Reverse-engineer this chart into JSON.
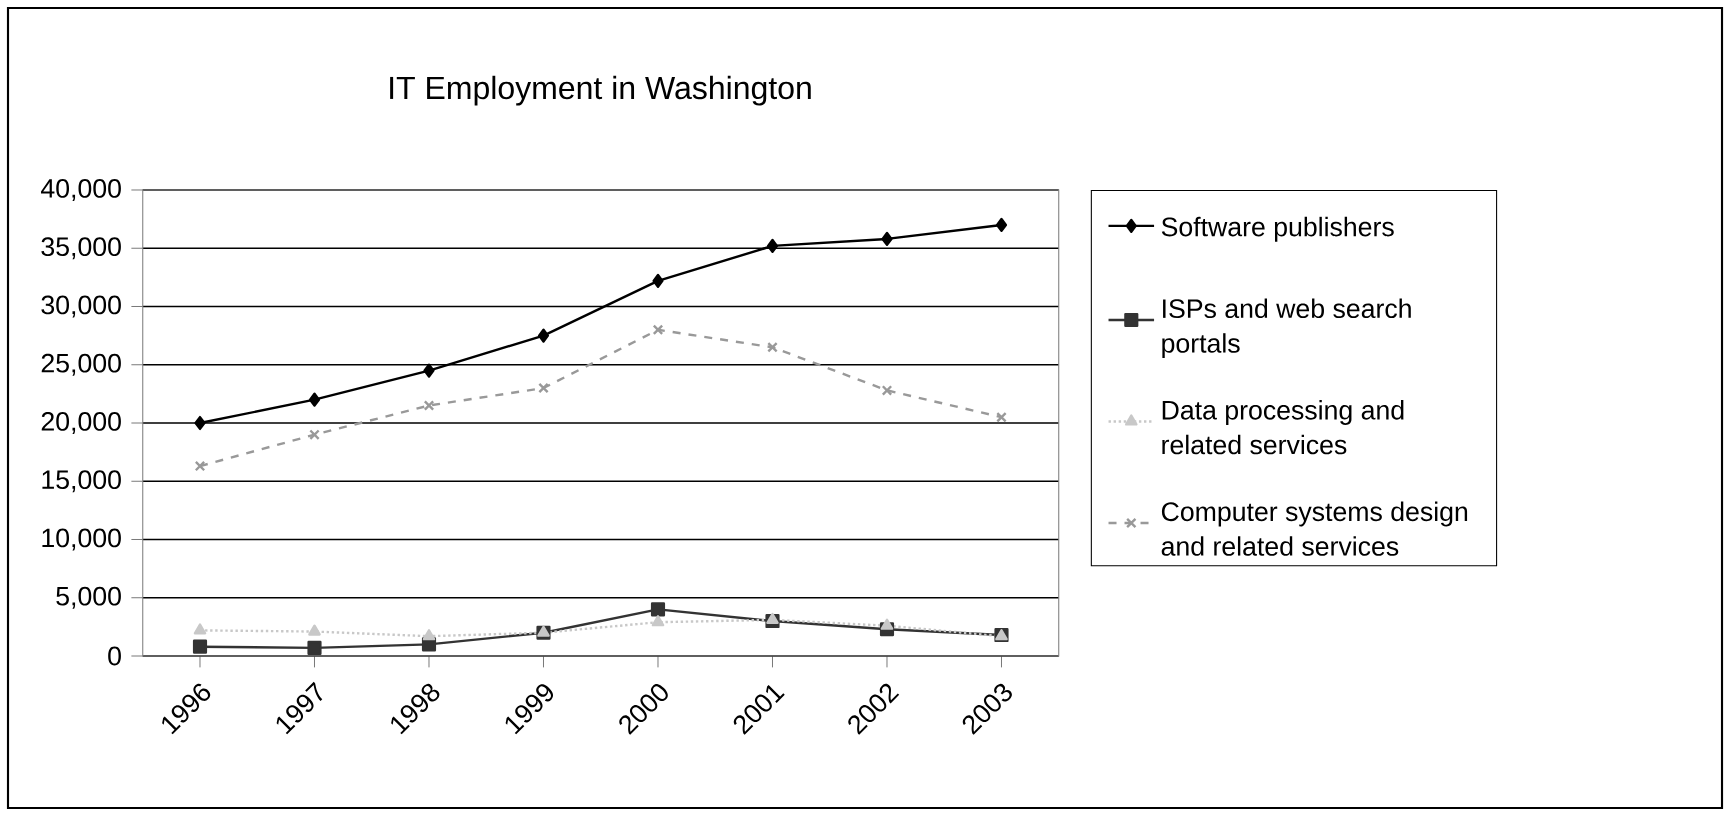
{
  "chart_data": {
    "type": "line",
    "title": "IT Employment in Washington",
    "categories": [
      "1996",
      "1997",
      "1998",
      "1999",
      "2000",
      "2001",
      "2002",
      "2003"
    ],
    "series": [
      {
        "name": "Software publishers",
        "color": "#000000",
        "marker": "diamond",
        "line_style": "solid",
        "values": [
          20000,
          22000,
          24500,
          27500,
          32200,
          35200,
          35800,
          37000
        ]
      },
      {
        "name": "ISPs and web search portals",
        "color": "#333333",
        "marker": "square",
        "line_style": "solid",
        "values": [
          800,
          700,
          1000,
          2000,
          4000,
          3000,
          2300,
          1800
        ]
      },
      {
        "name": "Data processing and related services",
        "color": "#c8c8c8",
        "marker": "triangle",
        "line_style": "dotted",
        "values": [
          2200,
          2100,
          1700,
          2000,
          2900,
          3100,
          2600,
          1700
        ]
      },
      {
        "name": "Computer systems design and related services",
        "color": "#999999",
        "marker": "cross",
        "line_style": "dashed",
        "values": [
          16300,
          19000,
          21500,
          23000,
          28000,
          26500,
          22800,
          20500
        ]
      }
    ],
    "ylim": [
      0,
      40000
    ],
    "yticks": [
      {
        "value": 0,
        "label": "0"
      },
      {
        "value": 5000,
        "label": "5,000"
      },
      {
        "value": 10000,
        "label": "10,000"
      },
      {
        "value": 15000,
        "label": "15,000"
      },
      {
        "value": 20000,
        "label": "20,000"
      },
      {
        "value": 25000,
        "label": "25,000"
      },
      {
        "value": 30000,
        "label": "30,000"
      },
      {
        "value": 35000,
        "label": "35,000"
      },
      {
        "value": 40000,
        "label": "40,000"
      }
    ],
    "grid": "y",
    "legend": "right"
  }
}
